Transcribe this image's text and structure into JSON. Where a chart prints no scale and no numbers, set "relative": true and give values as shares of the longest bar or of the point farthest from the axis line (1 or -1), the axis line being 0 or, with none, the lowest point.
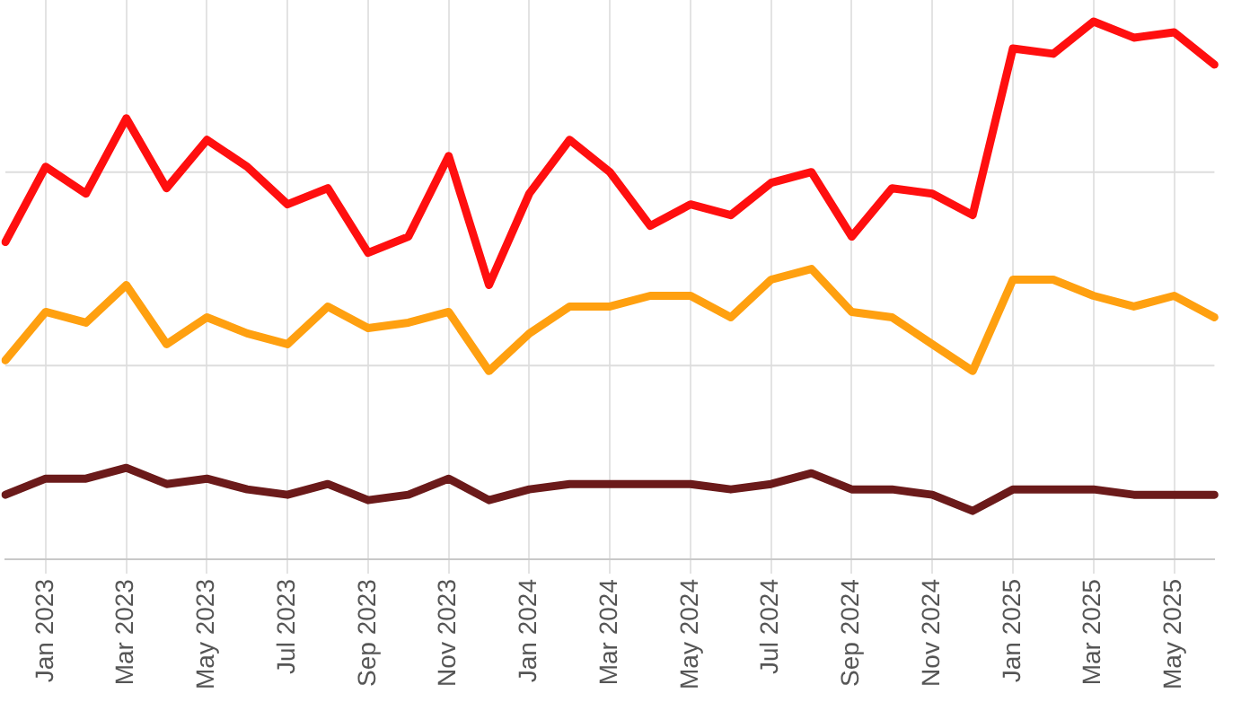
{
  "chart_data": {
    "type": "line",
    "relative": true,
    "categories": [
      null,
      "Jan 2023",
      null,
      "Mar 2023",
      null,
      "May 2023",
      null,
      "Jul 2023",
      null,
      "Sep 2023",
      null,
      "Nov 2023",
      null,
      "Jan 2024",
      null,
      "Mar 2024",
      null,
      "May 2024",
      null,
      "Jul 2024",
      null,
      "Sep 2024",
      null,
      "Nov 2024",
      null,
      "Jan 2025",
      null,
      "Mar 2025",
      null,
      "May 2025",
      null
    ],
    "series": [
      {
        "color": "#ff0f0f",
        "values": [
          0.59,
          0.73,
          0.68,
          0.82,
          0.69,
          0.78,
          0.73,
          0.66,
          0.69,
          0.57,
          0.6,
          0.75,
          0.51,
          0.68,
          0.78,
          0.72,
          0.62,
          0.66,
          0.64,
          0.7,
          0.72,
          0.6,
          0.69,
          0.68,
          0.64,
          0.95,
          0.94,
          1,
          0.97,
          0.98,
          0.92
        ]
      },
      {
        "color": "#ffa010",
        "values": [
          0.37,
          0.46,
          0.44,
          0.51,
          0.4,
          0.45,
          0.42,
          0.4,
          0.47,
          0.43,
          0.44,
          0.46,
          0.35,
          0.42,
          0.47,
          0.47,
          0.49,
          0.49,
          0.45,
          0.52,
          0.54,
          0.46,
          0.45,
          0.4,
          0.35,
          0.52,
          0.52,
          0.49,
          0.47,
          0.49,
          0.45
        ]
      },
      {
        "color": "#6b1a1a",
        "values": [
          0.12,
          0.15,
          0.15,
          0.17,
          0.14,
          0.15,
          0.13,
          0.12,
          0.14,
          0.11,
          0.12,
          0.15,
          0.11,
          0.13,
          0.14,
          0.14,
          0.14,
          0.14,
          0.13,
          0.14,
          0.16,
          0.13,
          0.13,
          0.12,
          0.09,
          0.13,
          0.13,
          0.13,
          0.12,
          0.12,
          0.12
        ]
      }
    ],
    "ref_lines": [
      {
        "axis": "y",
        "value": 0.36,
        "color": "#dddddd"
      },
      {
        "axis": "y",
        "value": 0.72,
        "color": "#dddddd"
      }
    ],
    "grid": "x",
    "legend": false,
    "marker": "none",
    "line_style": "solid"
  }
}
